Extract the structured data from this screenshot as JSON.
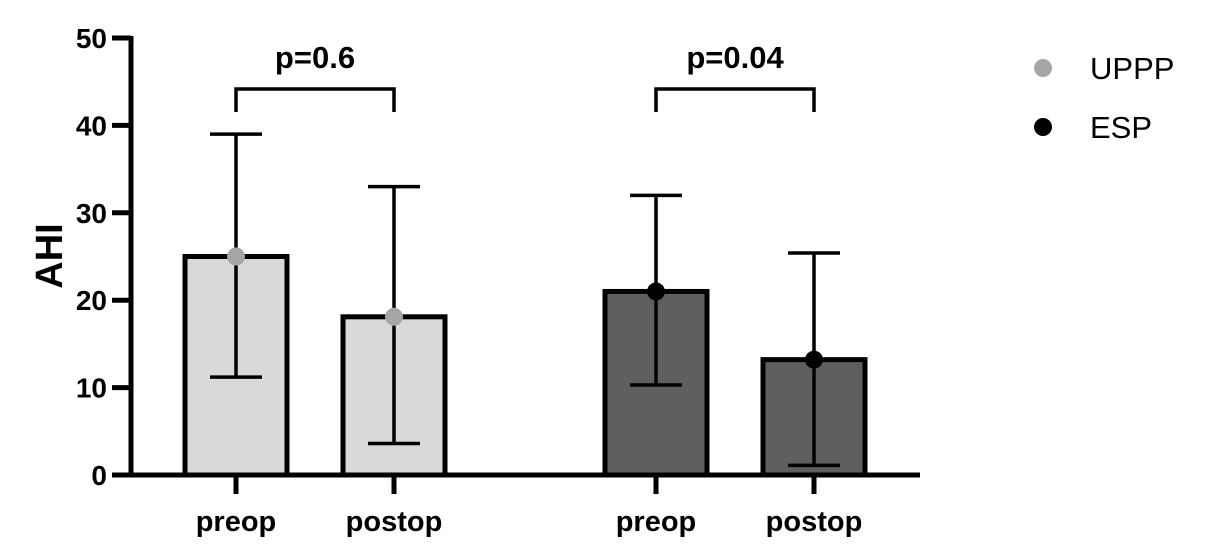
{
  "chart_data": {
    "type": "bar",
    "ylabel": "AHI",
    "xlabel": "",
    "ylim": [
      0,
      50
    ],
    "yticks": [
      "0",
      "10",
      "20",
      "30",
      "40",
      "50"
    ],
    "categories": [
      "preop",
      "postop",
      "preop",
      "postop"
    ],
    "series": [
      {
        "name": "UPPP",
        "marker_color": "#a6a6a6",
        "bar_color": "#d9d9d9",
        "bars": [
          {
            "label": "preop",
            "mean": 25,
            "err_low": 11.2,
            "err_high": 39
          },
          {
            "label": "postop",
            "mean": 18.1,
            "err_low": 3.6,
            "err_high": 33
          }
        ]
      },
      {
        "name": "ESP",
        "marker_color": "#000000",
        "bar_color": "#5f5f5f",
        "bars": [
          {
            "label": "preop",
            "mean": 21,
            "err_low": 10.3,
            "err_high": 32
          },
          {
            "label": "postop",
            "mean": 13.2,
            "err_low": 1.1,
            "err_high": 25.4
          }
        ]
      }
    ],
    "annotations": [
      {
        "text": "p=0.6",
        "group": 0
      },
      {
        "text": "p=0.04",
        "group": 1
      }
    ],
    "legend": {
      "position": "top-right",
      "entries": [
        {
          "label": "UPPP",
          "color": "#a6a6a6"
        },
        {
          "label": "ESP",
          "color": "#000000"
        }
      ]
    }
  }
}
